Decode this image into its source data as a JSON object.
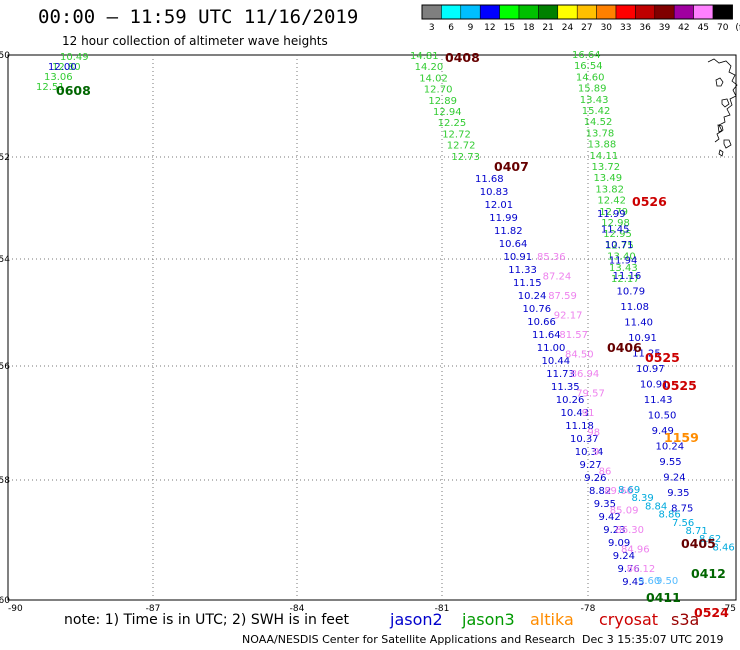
{
  "header": {
    "title": "00:00 – 11:59 UTC 11/16/2019",
    "subtitle": "12 hour collection of altimeter wave heights"
  },
  "color_key": {
    "labels": [
      "3",
      "6",
      "9",
      "12",
      "15",
      "18",
      "21",
      "24",
      "27",
      "30",
      "33",
      "36",
      "39",
      "42",
      "45",
      "70",
      "(ft)"
    ],
    "colors": [
      "#7f7f7f",
      "#00ffff",
      "#00bfff",
      "#0000ff",
      "#00ff00",
      "#00c000",
      "#008000",
      "#ffff00",
      "#ffc000",
      "#ff8000",
      "#ff0000",
      "#c00000",
      "#800000",
      "#a000a0",
      "#ff80ff",
      "#000000"
    ]
  },
  "axes": {
    "lat_labels": [
      "-50",
      "-52",
      "-54",
      "-56",
      "-58",
      "-60"
    ],
    "lon_labels": [
      "-90",
      "-87",
      "-84",
      "-81",
      "-78",
      "-75"
    ]
  },
  "footer": {
    "note": "note: 1) Time is in UTC; 2) SWH is in feet",
    "satellites": [
      {
        "name": "jason2",
        "color": "#0000cc"
      },
      {
        "name": "jason3",
        "color": "#009900"
      },
      {
        "name": "altika",
        "color": "#ff8c00"
      },
      {
        "name": "cryosat",
        "color": "#cc0000"
      },
      {
        "name": "s3a",
        "color": "#990000"
      }
    ],
    "credit": "NOAA/NESDIS Center for Satellite Applications and Research",
    "timestamp": "Dec  3 15:35:07 UTC 2019"
  },
  "time_labels": [
    {
      "label": "0608",
      "color": "#006600"
    },
    {
      "label": "0408",
      "color": "#660000"
    },
    {
      "label": "0407",
      "color": "#660000"
    },
    {
      "label": "0526",
      "color": "#cc0000"
    },
    {
      "label": "0406",
      "color": "#660000"
    },
    {
      "label": "0525",
      "color": "#cc0000"
    },
    {
      "label": "0525",
      "color": "#cc0000"
    },
    {
      "label": "1159",
      "color": "#ff8c00"
    },
    {
      "label": "0405",
      "color": "#660000"
    },
    {
      "label": "0412",
      "color": "#006600"
    },
    {
      "label": "0524",
      "color": "#cc0000"
    },
    {
      "label": "0411",
      "color": "#006600"
    }
  ],
  "tracks": [
    {
      "name": "jason3-west",
      "color": "#33cc33",
      "values": [
        "10.49",
        "12.80",
        "13.06",
        "12.51"
      ]
    },
    {
      "name": "jason2-west",
      "color": "#0000cc",
      "values": [
        "12.00"
      ]
    },
    {
      "name": "jason3-a",
      "color": "#33cc33",
      "values": [
        "14.81",
        "14.20",
        "14.02",
        "12.70",
        "12.89",
        "12.94",
        "12.25",
        "12.72",
        "12.72",
        "12.73"
      ]
    },
    {
      "name": "jason2-a",
      "color": "#0000cc",
      "values": [
        "11.68",
        "10.83",
        "12.01",
        "11.99",
        "11.82",
        "10.64",
        "10.91",
        "11.33",
        "11.15",
        "10.24",
        "10.76",
        "10.66",
        "11.64",
        "11.00",
        "10.44",
        "11.73",
        "11.35",
        "10.26",
        "10.43",
        "11.18",
        "10.37",
        "10.34",
        "9.27",
        "9.26",
        "8.82",
        "9.35",
        "9.42",
        "9.23",
        "9.09",
        "9.24",
        "9.76",
        "9.45"
      ]
    },
    {
      "name": "jason3-b",
      "color": "#33cc33",
      "values": [
        "16.64",
        "16.54",
        "14.60",
        "15.89",
        "13.43",
        "15.42",
        "14.52",
        "13.78",
        "13.88",
        "14.11",
        "13.72",
        "13.49",
        "13.82",
        "12.42",
        "12.79",
        "12.98",
        "12.95",
        "12.75",
        "13.40",
        "13.43",
        "12.17"
      ]
    },
    {
      "name": "jason2-b",
      "color": "#0000cc",
      "values": [
        "11.99",
        "11.45",
        "10.71",
        "11.94",
        "11.16",
        "10.79",
        "11.08",
        "11.40",
        "10.91",
        "11.25",
        "10.97",
        "10.91",
        "11.43",
        "10.50",
        "9.49",
        "10.24",
        "9.55",
        "9.24",
        "9.35",
        "8.75"
      ]
    },
    {
      "name": "altika-pink",
      "color": "#ee82ee",
      "values": [
        "85.36",
        "87.24",
        "87.59",
        "92.17",
        "81.57",
        "84.50",
        "86.94",
        "79.57",
        "91",
        "98",
        "9",
        "86",
        "89.66",
        "85.09",
        "86.30",
        "84.96",
        "86.12"
      ]
    },
    {
      "name": "s3a-cyan",
      "color": "#00aadd",
      "values": [
        "8.69",
        "8.39",
        "8.84",
        "8.86",
        "7.56",
        "8.71",
        "8.62",
        "8.46"
      ]
    },
    {
      "name": "s3a-lightblue",
      "color": "#55bbff",
      "values": [
        "9.60",
        "9.50"
      ]
    }
  ]
}
